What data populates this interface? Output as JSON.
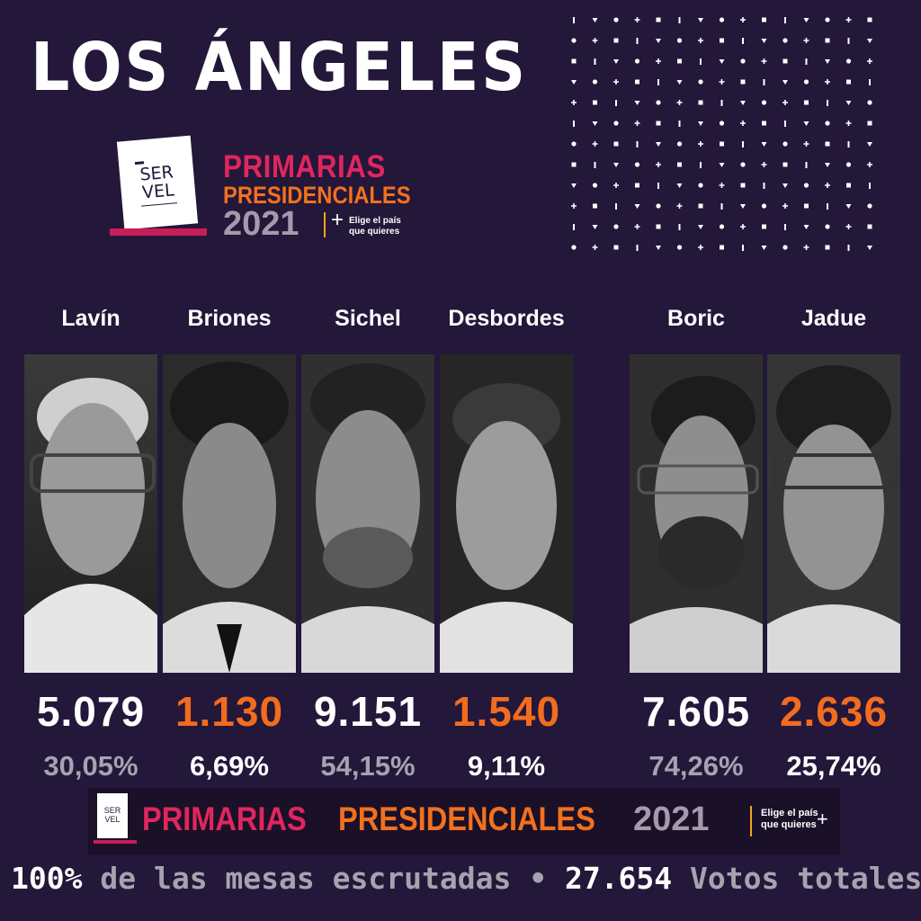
{
  "header": {
    "city": "LOS ÁNGELES"
  },
  "logo": {
    "ballot_line1": "SER",
    "ballot_line2": "VEL",
    "title_line1": "PRIMARIAS",
    "title_line2": "PRESIDENCIALES",
    "year": "2021",
    "plus": "+",
    "slogan_line1": "Elige el país",
    "slogan_line2": "que quieres"
  },
  "candidates": [
    {
      "name": "Lavín",
      "votes": "5.079",
      "percent": "30,05%",
      "vote_color": "#ffffff",
      "pct_color": "#a8a2b0"
    },
    {
      "name": "Briones",
      "votes": "1.130",
      "percent": "6,69%",
      "vote_color": "#f26c1f",
      "pct_color": "#ffffff"
    },
    {
      "name": "Sichel",
      "votes": "9.151",
      "percent": "54,15%",
      "vote_color": "#ffffff",
      "pct_color": "#a8a2b0"
    },
    {
      "name": "Desbordes",
      "votes": "1.540",
      "percent": "9,11%",
      "vote_color": "#f26c1f",
      "pct_color": "#ffffff"
    },
    {
      "name": "Boric",
      "votes": "7.605",
      "percent": "74,26%",
      "vote_color": "#ffffff",
      "pct_color": "#a8a2b0"
    },
    {
      "name": "Jadue",
      "votes": "2.636",
      "percent": "25,74%",
      "vote_color": "#f26c1f",
      "pct_color": "#ffffff"
    }
  ],
  "banner": {
    "ballot_line1": "SER",
    "ballot_line2": "VEL",
    "title_red": "PRIMARIAS",
    "title_orange": "PRESIDENCIALES",
    "year": "2021",
    "slogan_line1": "Elige el país",
    "slogan_line2": "que quieres",
    "plus": "+"
  },
  "footer": {
    "percent": "100%",
    "mesas_text": "de las mesas escrutadas",
    "bullet": "•",
    "total_votes": "27.654",
    "total_label": "Votos totales"
  }
}
